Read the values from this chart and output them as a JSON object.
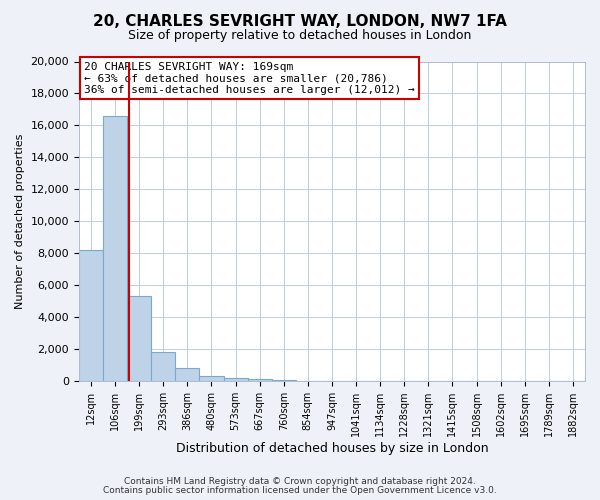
{
  "title": "20, CHARLES SEVRIGHT WAY, LONDON, NW7 1FA",
  "subtitle": "Size of property relative to detached houses in London",
  "xlabel": "Distribution of detached houses by size in London",
  "ylabel": "Number of detached properties",
  "bar_labels": [
    "12sqm",
    "106sqm",
    "199sqm",
    "293sqm",
    "386sqm",
    "480sqm",
    "573sqm",
    "667sqm",
    "760sqm",
    "854sqm",
    "947sqm",
    "1041sqm",
    "1134sqm",
    "1228sqm",
    "1321sqm",
    "1415sqm",
    "1508sqm",
    "1602sqm",
    "1695sqm",
    "1789sqm",
    "1882sqm"
  ],
  "bar_heights": [
    8200,
    16600,
    5300,
    1850,
    800,
    320,
    200,
    130,
    100,
    0,
    0,
    0,
    0,
    0,
    0,
    0,
    0,
    0,
    0,
    0,
    0
  ],
  "bar_color": "#bed3e8",
  "bar_edgecolor": "#7aaac8",
  "property_line_x": 1.57,
  "property_line_color": "#cc0000",
  "annotation_title": "20 CHARLES SEVRIGHT WAY: 169sqm",
  "annotation_line1": "← 63% of detached houses are smaller (20,786)",
  "annotation_line2": "36% of semi-detached houses are larger (12,012) →",
  "annotation_box_color": "#ffffff",
  "annotation_box_edgecolor": "#cc0000",
  "ylim": [
    0,
    20000
  ],
  "yticks": [
    0,
    2000,
    4000,
    6000,
    8000,
    10000,
    12000,
    14000,
    16000,
    18000,
    20000
  ],
  "footer1": "Contains HM Land Registry data © Crown copyright and database right 2024.",
  "footer2": "Contains public sector information licensed under the Open Government Licence v3.0.",
  "bg_color": "#eef2f8",
  "plot_bg_color": "#ffffff",
  "title_fontsize": 11,
  "subtitle_fontsize": 9,
  "xlabel_fontsize": 9,
  "ylabel_fontsize": 8,
  "tick_fontsize": 8,
  "xtick_fontsize": 7,
  "footer_fontsize": 6.5,
  "ann_fontsize": 8
}
